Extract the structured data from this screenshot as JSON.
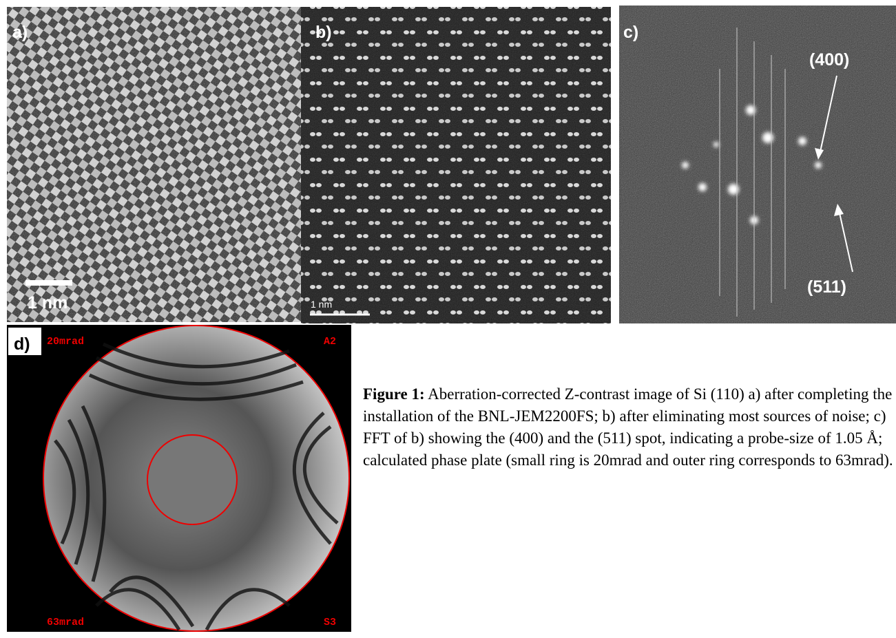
{
  "panels": [
    {
      "label": "a)",
      "scale_bar": "1 nm"
    },
    {
      "label": "b)",
      "scale_bar": "1 nm"
    },
    {
      "label": "c)",
      "annotations": [
        "(400)",
        "(511)"
      ]
    },
    {
      "label": "d)",
      "corner_labels": [
        "20mrad",
        "A2",
        "63mrad",
        "S3"
      ]
    }
  ],
  "caption": {
    "title": "Figure 1:",
    "text": "Aberration-corrected Z-contrast image of Si (110) a) after completing the installation of the BNL-JEM2200FS; b) after eliminating most sources of noise; c) FFT of b) showing the (400) and the (511) spot, indicating a probe-size of 1.05 Å; calculated phase plate (small ring is 20mrad and outer ring corresponds to 63mrad)."
  }
}
